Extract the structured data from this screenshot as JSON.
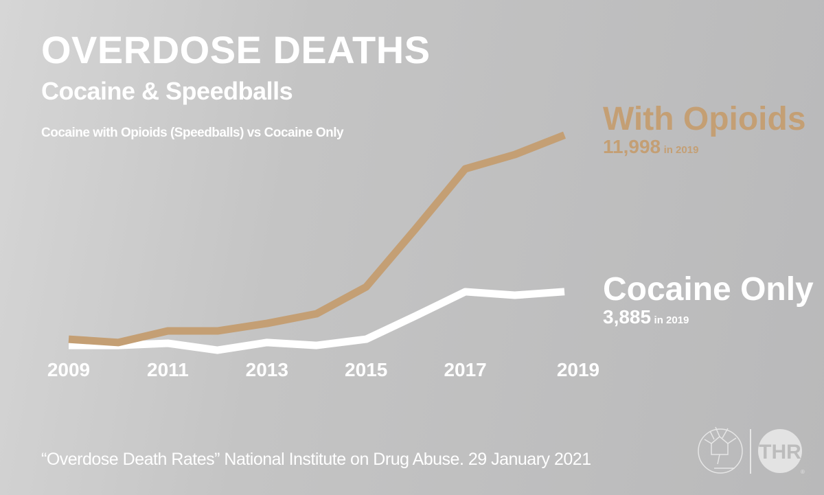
{
  "title": "OVERDOSE DEATHS",
  "subtitle": "Cocaine & Speedballs",
  "caption": "Cocaine with Opioids (Speedballs) vs Cocaine Only",
  "source": "“Overdose Death Rates” National Institute on Drug Abuse. 29 January 2021",
  "logo": {
    "text": "THR"
  },
  "labels": {
    "opioids": {
      "name": "With Opioids",
      "value": "11,998",
      "suffix": "in 2019"
    },
    "cocaine": {
      "name": "Cocaine Only",
      "value": "3,885",
      "suffix": "in 2019"
    }
  },
  "colors": {
    "opioids": "#c49f74",
    "cocaine": "#ffffff",
    "background": "#c4c4c4"
  },
  "chart_data": {
    "type": "line",
    "x": [
      2009,
      2010,
      2011,
      2012,
      2013,
      2014,
      2015,
      2016,
      2017,
      2018,
      2019
    ],
    "xticks": [
      "2009",
      "2011",
      "2013",
      "2015",
      "2017",
      "2019"
    ],
    "ylim": [
      0,
      12500
    ],
    "grid": false,
    "series": [
      {
        "name": "With Opioids",
        "color": "#c49f74",
        "values": [
          1420,
          1250,
          1850,
          1850,
          2240,
          2740,
          4130,
          7150,
          10250,
          10990,
          11998
        ]
      },
      {
        "name": "Cocaine Only",
        "color": "#ffffff",
        "values": [
          1100,
          1100,
          1210,
          850,
          1250,
          1100,
          1420,
          2630,
          3880,
          3700,
          3885
        ]
      }
    ]
  }
}
